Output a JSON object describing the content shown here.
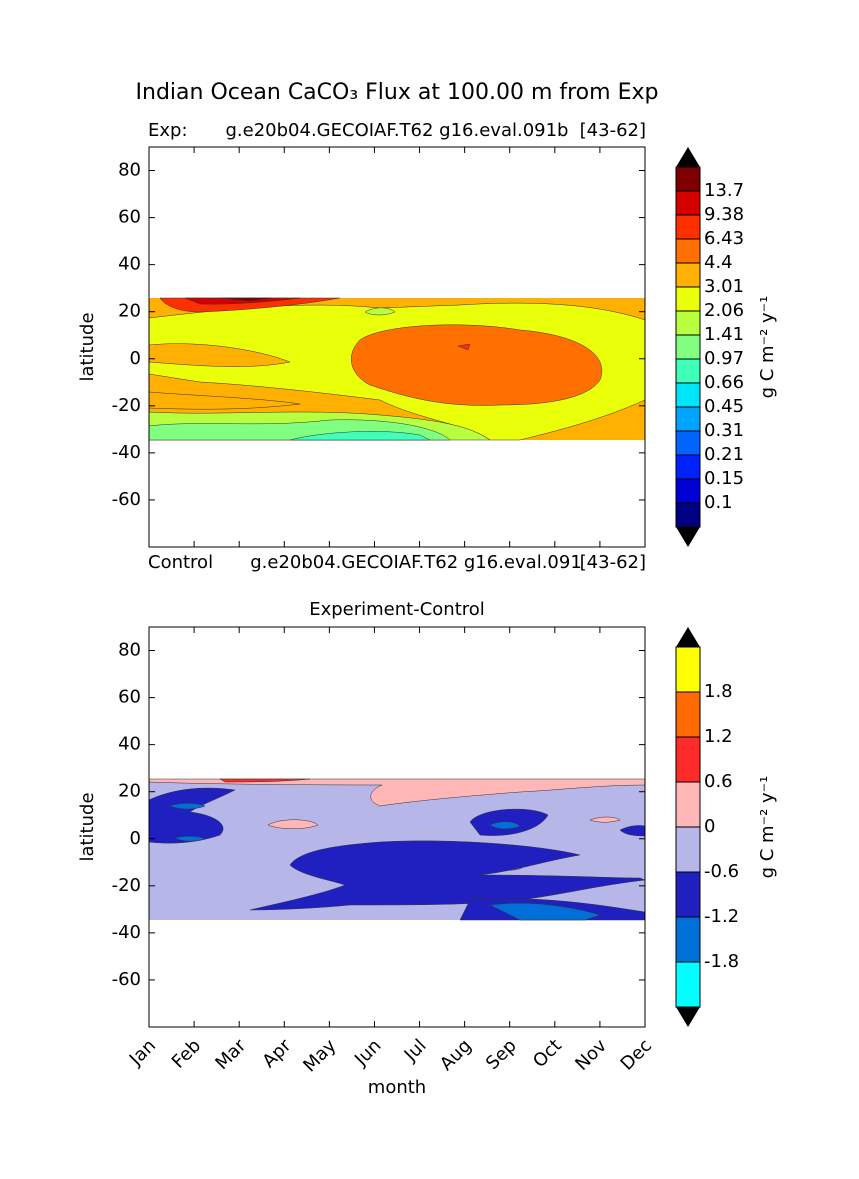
{
  "title": "Indian Ocean CaCO₃ Flux at 100.00 m from Exp",
  "chart_data": [
    {
      "type": "contour",
      "header_left": "Exp:",
      "header_center": "g.e20b04.GECOIAF.T62 g16.eval.091b",
      "header_right": "[43-62]",
      "footer_left": "Control",
      "footer_center": "g.e20b04.GECOIAF.T62 g16.eval.091",
      "footer_right": "[43-62]",
      "y_label": "latitude",
      "ylim": [
        -80,
        90
      ],
      "yticks": [
        -60,
        -40,
        -20,
        0,
        20,
        40,
        60,
        80
      ],
      "colorbar": {
        "label": "g C m⁻² y⁻¹",
        "levels": [
          0.1,
          0.15,
          0.21,
          0.31,
          0.45,
          0.66,
          0.97,
          1.41,
          2.06,
          3.01,
          4.4,
          6.43,
          9.38,
          13.7
        ],
        "colors": [
          "#000080",
          "#0000d4",
          "#0020ff",
          "#0064ff",
          "#00a4ff",
          "#00e4f8",
          "#40ffb8",
          "#80ff80",
          "#b8ff40",
          "#eaff0a",
          "#ffb000",
          "#ff7000",
          "#ff3000",
          "#d40000",
          "#7f0000"
        ],
        "extend_color": "#000000"
      }
    },
    {
      "type": "contour",
      "title": "Experiment-Control",
      "x_label": "month",
      "categories": [
        "Jan",
        "Feb",
        "Mar",
        "Apr",
        "May",
        "Jun",
        "Jul",
        "Aug",
        "Sep",
        "Oct",
        "Nov",
        "Dec"
      ],
      "y_label": "latitude",
      "ylim": [
        -80,
        90
      ],
      "yticks": [
        -60,
        -40,
        -20,
        0,
        20,
        40,
        60,
        80
      ],
      "colorbar": {
        "label": "g C m⁻² y⁻¹",
        "levels": [
          -1.8,
          -1.2,
          -0.6,
          0,
          0.6,
          1.2,
          1.8
        ],
        "colors": [
          "#00ffff",
          "#0070d8",
          "#2020c0",
          "#b6b6e8",
          "#ffb6b6",
          "#ff2a2a",
          "#ff6a00",
          "#ffff00"
        ],
        "extend_color": "#000000"
      }
    }
  ]
}
